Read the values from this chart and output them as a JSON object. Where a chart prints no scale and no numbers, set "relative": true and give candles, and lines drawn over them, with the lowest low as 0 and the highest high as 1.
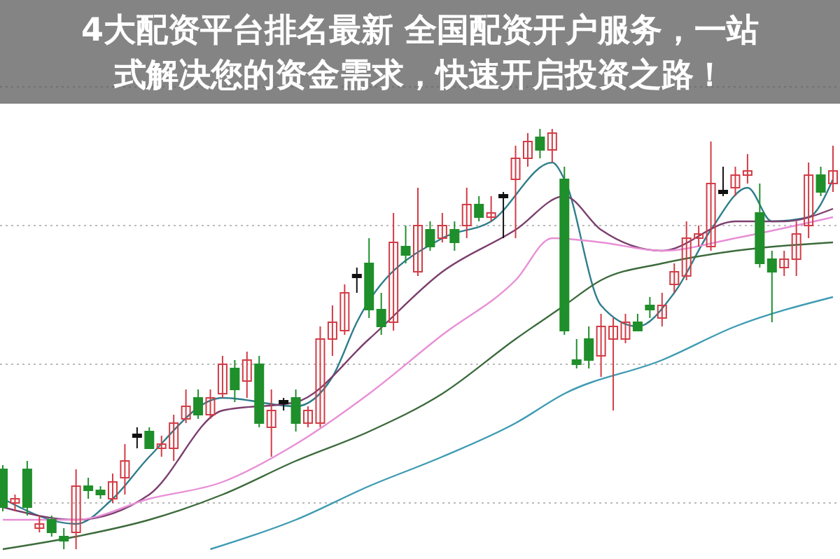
{
  "chart_data": {
    "type": "candlestick",
    "title": "4大配资平台排名最新 全国配资开户服务，一站式解决您的资金需求，快速开启投资之路！",
    "relative": true,
    "grid": true,
    "categories": [
      null,
      null,
      null,
      null,
      null,
      null,
      null,
      null,
      null,
      null,
      null,
      null,
      null,
      null,
      null,
      null,
      null,
      null,
      null,
      null,
      null,
      null,
      null,
      null,
      null,
      null,
      null,
      null,
      null,
      null,
      null,
      null,
      null,
      null,
      null,
      null,
      null,
      null,
      null,
      null,
      null,
      null,
      null,
      null,
      null,
      null,
      null,
      null,
      null,
      null,
      null,
      null,
      null,
      null,
      null,
      null,
      null,
      null,
      null,
      null,
      null,
      null,
      null,
      null,
      null,
      null,
      null,
      null,
      null
    ],
    "ohlc": [
      [
        0.19,
        0.2,
        0.09,
        0.1
      ],
      [
        0.11,
        0.13,
        0.09,
        0.12
      ],
      [
        0.19,
        0.21,
        0.08,
        0.1
      ],
      [
        0.05,
        0.08,
        0.04,
        0.06
      ],
      [
        0.07,
        0.08,
        0.03,
        0.04
      ],
      [
        0.03,
        0.05,
        0,
        0.02
      ],
      [
        0.04,
        0.19,
        0,
        0.15
      ],
      [
        0.15,
        0.17,
        0.12,
        0.14
      ],
      [
        0.14,
        0.15,
        0.12,
        0.13
      ],
      [
        0.12,
        0.18,
        0.11,
        0.16
      ],
      [
        0.17,
        0.25,
        0.13,
        0.21
      ],
      [
        0.27,
        0.29,
        0.24,
        0.27
      ],
      [
        0.28,
        0.29,
        0.24,
        0.24
      ],
      [
        0.24,
        0.27,
        0.22,
        0.25
      ],
      [
        0.24,
        0.32,
        0.21,
        0.3
      ],
      [
        0.31,
        0.38,
        0.3,
        0.34
      ],
      [
        0.36,
        0.38,
        0.31,
        0.32
      ],
      [
        0.32,
        0.38,
        0.31,
        0.36
      ],
      [
        0.37,
        0.46,
        0.36,
        0.44
      ],
      [
        0.43,
        0.45,
        0.35,
        0.38
      ],
      [
        0.4,
        0.47,
        0.36,
        0.45
      ],
      [
        0.44,
        0.46,
        0.29,
        0.3
      ],
      [
        0.29,
        0.38,
        0.22,
        0.33
      ],
      [
        0.35,
        0.36,
        0.33,
        0.35
      ],
      [
        0.36,
        0.38,
        0.28,
        0.3
      ],
      [
        0.3,
        0.34,
        0.29,
        0.33
      ],
      [
        0.3,
        0.53,
        0.29,
        0.5
      ],
      [
        0.5,
        0.58,
        0.46,
        0.54
      ],
      [
        0.52,
        0.63,
        0.51,
        0.61
      ],
      [
        0.65,
        0.67,
        0.61,
        0.65
      ],
      [
        0.68,
        0.74,
        0.55,
        0.57
      ],
      [
        0.57,
        0.61,
        0.51,
        0.53
      ],
      [
        0.54,
        0.8,
        0.52,
        0.73
      ],
      [
        0.72,
        0.77,
        0.68,
        0.7
      ],
      [
        0.66,
        0.86,
        0.65,
        0.77
      ],
      [
        0.76,
        0.78,
        0.71,
        0.72
      ],
      [
        0.74,
        0.8,
        0.73,
        0.77
      ],
      [
        0.76,
        0.78,
        0.71,
        0.73
      ],
      [
        0.77,
        0.86,
        0.74,
        0.82
      ],
      [
        0.82,
        0.84,
        0.78,
        0.79
      ],
      [
        0.79,
        0.84,
        0.78,
        0.8
      ],
      [
        0.84,
        0.85,
        0.74,
        0.84
      ],
      [
        0.88,
        0.96,
        0.74,
        0.93
      ],
      [
        0.93,
        0.99,
        0.91,
        0.97
      ],
      [
        0.98,
        1,
        0.93,
        0.95
      ],
      [
        0.95,
        1,
        0.92,
        0.99
      ],
      [
        0.88,
        0.91,
        0.51,
        0.52
      ],
      [
        0.45,
        0.5,
        0.43,
        0.44
      ],
      [
        0.5,
        0.53,
        0.43,
        0.45
      ],
      [
        0.46,
        0.56,
        0.41,
        0.53
      ],
      [
        0.5,
        0.55,
        0.33,
        0.53
      ],
      [
        0.5,
        0.56,
        0.49,
        0.54
      ],
      [
        0.54,
        0.56,
        0.52,
        0.52
      ],
      [
        0.58,
        0.6,
        0.55,
        0.57
      ],
      [
        0.55,
        0.61,
        0.53,
        0.58
      ],
      [
        0.63,
        0.68,
        0.61,
        0.66
      ],
      [
        0.65,
        0.78,
        0.64,
        0.74
      ],
      [
        0.74,
        0.77,
        0.72,
        0.75
      ],
      [
        0.72,
        0.97,
        0.71,
        0.87
      ],
      [
        0.85,
        0.91,
        0.84,
        0.85
      ],
      [
        0.86,
        0.91,
        0.84,
        0.89
      ],
      [
        0.89,
        0.94,
        0.87,
        0.9
      ],
      [
        0.8,
        0.87,
        0.67,
        0.68
      ],
      [
        0.69,
        0.71,
        0.54,
        0.66
      ],
      [
        0.67,
        0.71,
        0.65,
        0.69
      ],
      [
        0.69,
        0.78,
        0.65,
        0.75
      ],
      [
        0.77,
        0.92,
        0.74,
        0.89
      ],
      [
        0.89,
        0.91,
        0.84,
        0.85
      ],
      [
        0.87,
        0.96,
        0.85,
        0.9
      ]
    ],
    "series": [
      {
        "type": "line",
        "color": "#2e7d8c",
        "values": [
          0.12,
          null,
          null,
          null,
          null,
          null,
          0.06,
          null,
          null,
          0.12,
          null,
          null,
          0.22,
          null,
          null,
          null,
          null,
          null,
          0.36,
          null,
          null,
          null,
          null,
          null,
          0.34,
          null,
          null,
          0.41,
          null,
          0.54,
          null,
          null,
          null,
          null,
          null,
          null,
          0.74,
          null,
          null,
          null,
          0.78,
          null,
          null,
          null,
          null,
          0.92,
          0.88,
          null,
          null,
          0.58,
          null,
          null,
          0.53,
          null,
          null,
          0.61,
          null,
          null,
          0.76,
          null,
          null,
          0.86,
          null,
          0.78,
          null,
          null,
          0.79,
          null,
          0.88
        ]
      },
      {
        "type": "line",
        "color": "#7b3f6e",
        "values": [
          0.1,
          null,
          null,
          null,
          null,
          null,
          0.07,
          null,
          null,
          null,
          null,
          null,
          0.13,
          null,
          null,
          null,
          null,
          null,
          0.33,
          null,
          null,
          null,
          null,
          null,
          0.35,
          null,
          null,
          null,
          null,
          null,
          0.5,
          null,
          null,
          null,
          null,
          null,
          0.66,
          null,
          null,
          null,
          null,
          null,
          0.76,
          null,
          null,
          null,
          0.84,
          null,
          null,
          0.76,
          null,
          null,
          null,
          null,
          0.71,
          null,
          null,
          null,
          null,
          null,
          0.78,
          null,
          null,
          null,
          0.78,
          null,
          null,
          null,
          0.81
        ]
      },
      {
        "type": "line",
        "color": "#e88fd6",
        "values": [
          0.07,
          null,
          null,
          null,
          null,
          null,
          0.07,
          null,
          null,
          null,
          null,
          null,
          0.12,
          null,
          null,
          null,
          null,
          null,
          0.16,
          null,
          null,
          null,
          null,
          null,
          0.25,
          null,
          null,
          null,
          null,
          null,
          0.37,
          null,
          null,
          null,
          null,
          null,
          0.51,
          null,
          null,
          null,
          null,
          null,
          0.64,
          null,
          null,
          0.74,
          null,
          null,
          null,
          0.73,
          null,
          null,
          null,
          null,
          0.71,
          null,
          null,
          null,
          null,
          null,
          0.74,
          null,
          null,
          null,
          null,
          null,
          null,
          null,
          0.79
        ]
      },
      {
        "type": "line",
        "color": "#3d6b3d",
        "values": [
          0,
          null,
          null,
          null,
          null,
          null,
          0.03,
          null,
          null,
          null,
          null,
          null,
          0.07,
          null,
          null,
          null,
          null,
          null,
          0.13,
          null,
          null,
          null,
          null,
          null,
          0.21,
          null,
          null,
          null,
          null,
          null,
          0.28,
          null,
          null,
          null,
          null,
          null,
          0.37,
          null,
          null,
          null,
          null,
          null,
          0.5,
          null,
          null,
          null,
          0.58,
          null,
          null,
          0.64,
          null,
          null,
          null,
          null,
          0.68,
          null,
          null,
          null,
          null,
          null,
          0.71,
          null,
          null,
          null,
          null,
          null,
          null,
          null,
          0.73
        ]
      },
      {
        "type": "line",
        "color": "#3f9bb3",
        "values": [
          null,
          null,
          null,
          null,
          null,
          null,
          null,
          null,
          null,
          null,
          null,
          null,
          null,
          null,
          null,
          null,
          null,
          0,
          null,
          null,
          null,
          null,
          null,
          null,
          0.07,
          null,
          null,
          null,
          null,
          null,
          0.15,
          null,
          null,
          null,
          null,
          null,
          0.22,
          null,
          null,
          null,
          null,
          null,
          0.3,
          null,
          null,
          null,
          0.37,
          null,
          null,
          null,
          null,
          null,
          null,
          null,
          0.45,
          null,
          null,
          null,
          null,
          null,
          0.53,
          null,
          null,
          null,
          null,
          null,
          null,
          null,
          0.6
        ]
      }
    ]
  }
}
